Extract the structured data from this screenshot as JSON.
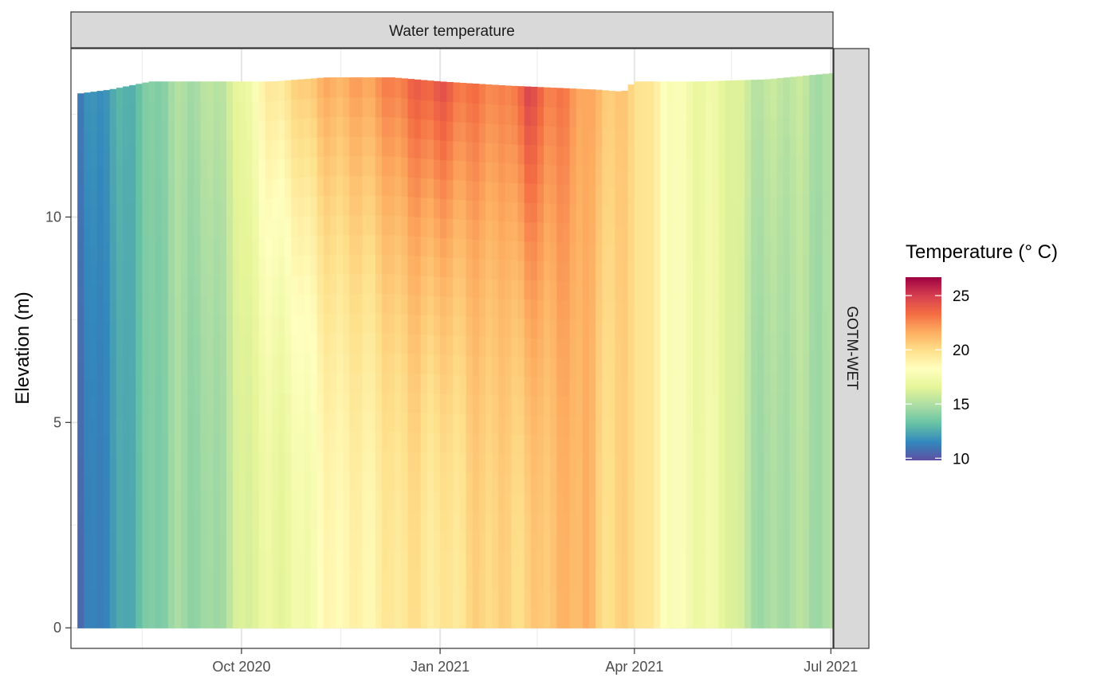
{
  "chart_data": {
    "type": "heatmap",
    "facet_title": "Water temperature",
    "facet_row_label": "GOTM-WET",
    "ylabel": "Elevation (m)",
    "xlabel": "",
    "x_range": [
      "2020-07-14",
      "2021-07-02"
    ],
    "ylim": [
      -0.5,
      14.1
    ],
    "x_ticks": [
      {
        "date": "2020-10-01",
        "label": "Oct 2020"
      },
      {
        "date": "2021-01-01",
        "label": "Jan 2021"
      },
      {
        "date": "2021-04-01",
        "label": "Apr 2021"
      },
      {
        "date": "2021-07-01",
        "label": "Jul 2021"
      }
    ],
    "x_minor_dates": [
      "2020-08-16",
      "2020-11-16",
      "2021-02-15",
      "2021-05-16"
    ],
    "y_ticks": [
      0,
      5,
      10
    ],
    "y_minor_ticks": [
      2.5,
      7.5,
      12.5
    ],
    "grid": true,
    "legend": {
      "title": "Temperature (° C)",
      "position": "right",
      "min": 9.8,
      "max": 26.7,
      "ticks": [
        10,
        15,
        20,
        25
      ],
      "palette": [
        "#5E4FA2",
        "#3288BD",
        "#66C2A5",
        "#ABDDA4",
        "#E6F598",
        "#FFFFBF",
        "#FEE08B",
        "#FDAE61",
        "#F46D43",
        "#D53E4F",
        "#9E0142"
      ]
    },
    "surface_elevation": [
      {
        "date": "2020-07-17",
        "value": 13.0
      },
      {
        "date": "2020-08-01",
        "value": 13.1
      },
      {
        "date": "2020-08-20",
        "value": 13.3
      },
      {
        "date": "2020-09-15",
        "value": 13.3
      },
      {
        "date": "2020-10-15",
        "value": 13.3
      },
      {
        "date": "2020-11-10",
        "value": 13.4
      },
      {
        "date": "2020-12-10",
        "value": 13.4
      },
      {
        "date": "2021-01-01",
        "value": 13.3
      },
      {
        "date": "2021-02-01",
        "value": 13.2
      },
      {
        "date": "2021-03-15",
        "value": 13.1
      },
      {
        "date": "2021-03-27",
        "value": 13.05
      },
      {
        "date": "2021-04-01",
        "value": 13.3
      },
      {
        "date": "2021-05-01",
        "value": 13.3
      },
      {
        "date": "2021-06-01",
        "value": 13.35
      },
      {
        "date": "2021-07-01",
        "value": 13.5
      }
    ],
    "bottom_temperature": [
      {
        "date": "2020-07-17",
        "value": 10.5
      },
      {
        "date": "2020-08-01",
        "value": 11.5
      },
      {
        "date": "2020-08-15",
        "value": 13.5
      },
      {
        "date": "2020-09-01",
        "value": 14.3
      },
      {
        "date": "2020-09-15",
        "value": 14.5
      },
      {
        "date": "2020-10-01",
        "value": 16.0
      },
      {
        "date": "2020-10-15",
        "value": 16.8
      },
      {
        "date": "2020-11-01",
        "value": 17.6
      },
      {
        "date": "2020-11-15",
        "value": 18.6
      },
      {
        "date": "2020-12-01",
        "value": 19.2
      },
      {
        "date": "2020-12-15",
        "value": 19.5
      },
      {
        "date": "2021-01-01",
        "value": 19.6
      },
      {
        "date": "2021-01-15",
        "value": 20.0
      },
      {
        "date": "2021-02-01",
        "value": 20.3
      },
      {
        "date": "2021-02-15",
        "value": 20.7
      },
      {
        "date": "2021-03-01",
        "value": 21.0
      },
      {
        "date": "2021-03-10",
        "value": 21.8
      },
      {
        "date": "2021-03-15",
        "value": 20.5
      },
      {
        "date": "2021-04-01",
        "value": 20.0
      },
      {
        "date": "2021-04-15",
        "value": 18.5
      },
      {
        "date": "2021-05-01",
        "value": 17.2
      },
      {
        "date": "2021-05-15",
        "value": 16.5
      },
      {
        "date": "2021-06-01",
        "value": 14.6
      },
      {
        "date": "2021-06-15",
        "value": 14.8
      },
      {
        "date": "2021-07-01",
        "value": 15.0
      }
    ],
    "surface_temperature": [
      {
        "date": "2020-07-17",
        "value": 11.0
      },
      {
        "date": "2020-08-01",
        "value": 12.0
      },
      {
        "date": "2020-08-15",
        "value": 13.6
      },
      {
        "date": "2020-09-01",
        "value": 14.5
      },
      {
        "date": "2020-09-15",
        "value": 15.3
      },
      {
        "date": "2020-10-01",
        "value": 16.5
      },
      {
        "date": "2020-10-15",
        "value": 19.5
      },
      {
        "date": "2020-11-01",
        "value": 21.0
      },
      {
        "date": "2020-11-15",
        "value": 21.5
      },
      {
        "date": "2020-12-01",
        "value": 22.5
      },
      {
        "date": "2020-12-15",
        "value": 23.0
      },
      {
        "date": "2021-01-01",
        "value": 24.5
      },
      {
        "date": "2021-01-15",
        "value": 23.0
      },
      {
        "date": "2021-02-01",
        "value": 22.5
      },
      {
        "date": "2021-02-10",
        "value": 25.0
      },
      {
        "date": "2021-02-20",
        "value": 23.0
      },
      {
        "date": "2021-03-01",
        "value": 22.5
      },
      {
        "date": "2021-03-15",
        "value": 21.5
      },
      {
        "date": "2021-04-01",
        "value": 20.0
      },
      {
        "date": "2021-04-15",
        "value": 18.5
      },
      {
        "date": "2021-05-01",
        "value": 17.0
      },
      {
        "date": "2021-05-15",
        "value": 16.5
      },
      {
        "date": "2021-06-01",
        "value": 15.5
      },
      {
        "date": "2021-06-15",
        "value": 15.3
      },
      {
        "date": "2021-07-01",
        "value": 15.0
      }
    ]
  }
}
